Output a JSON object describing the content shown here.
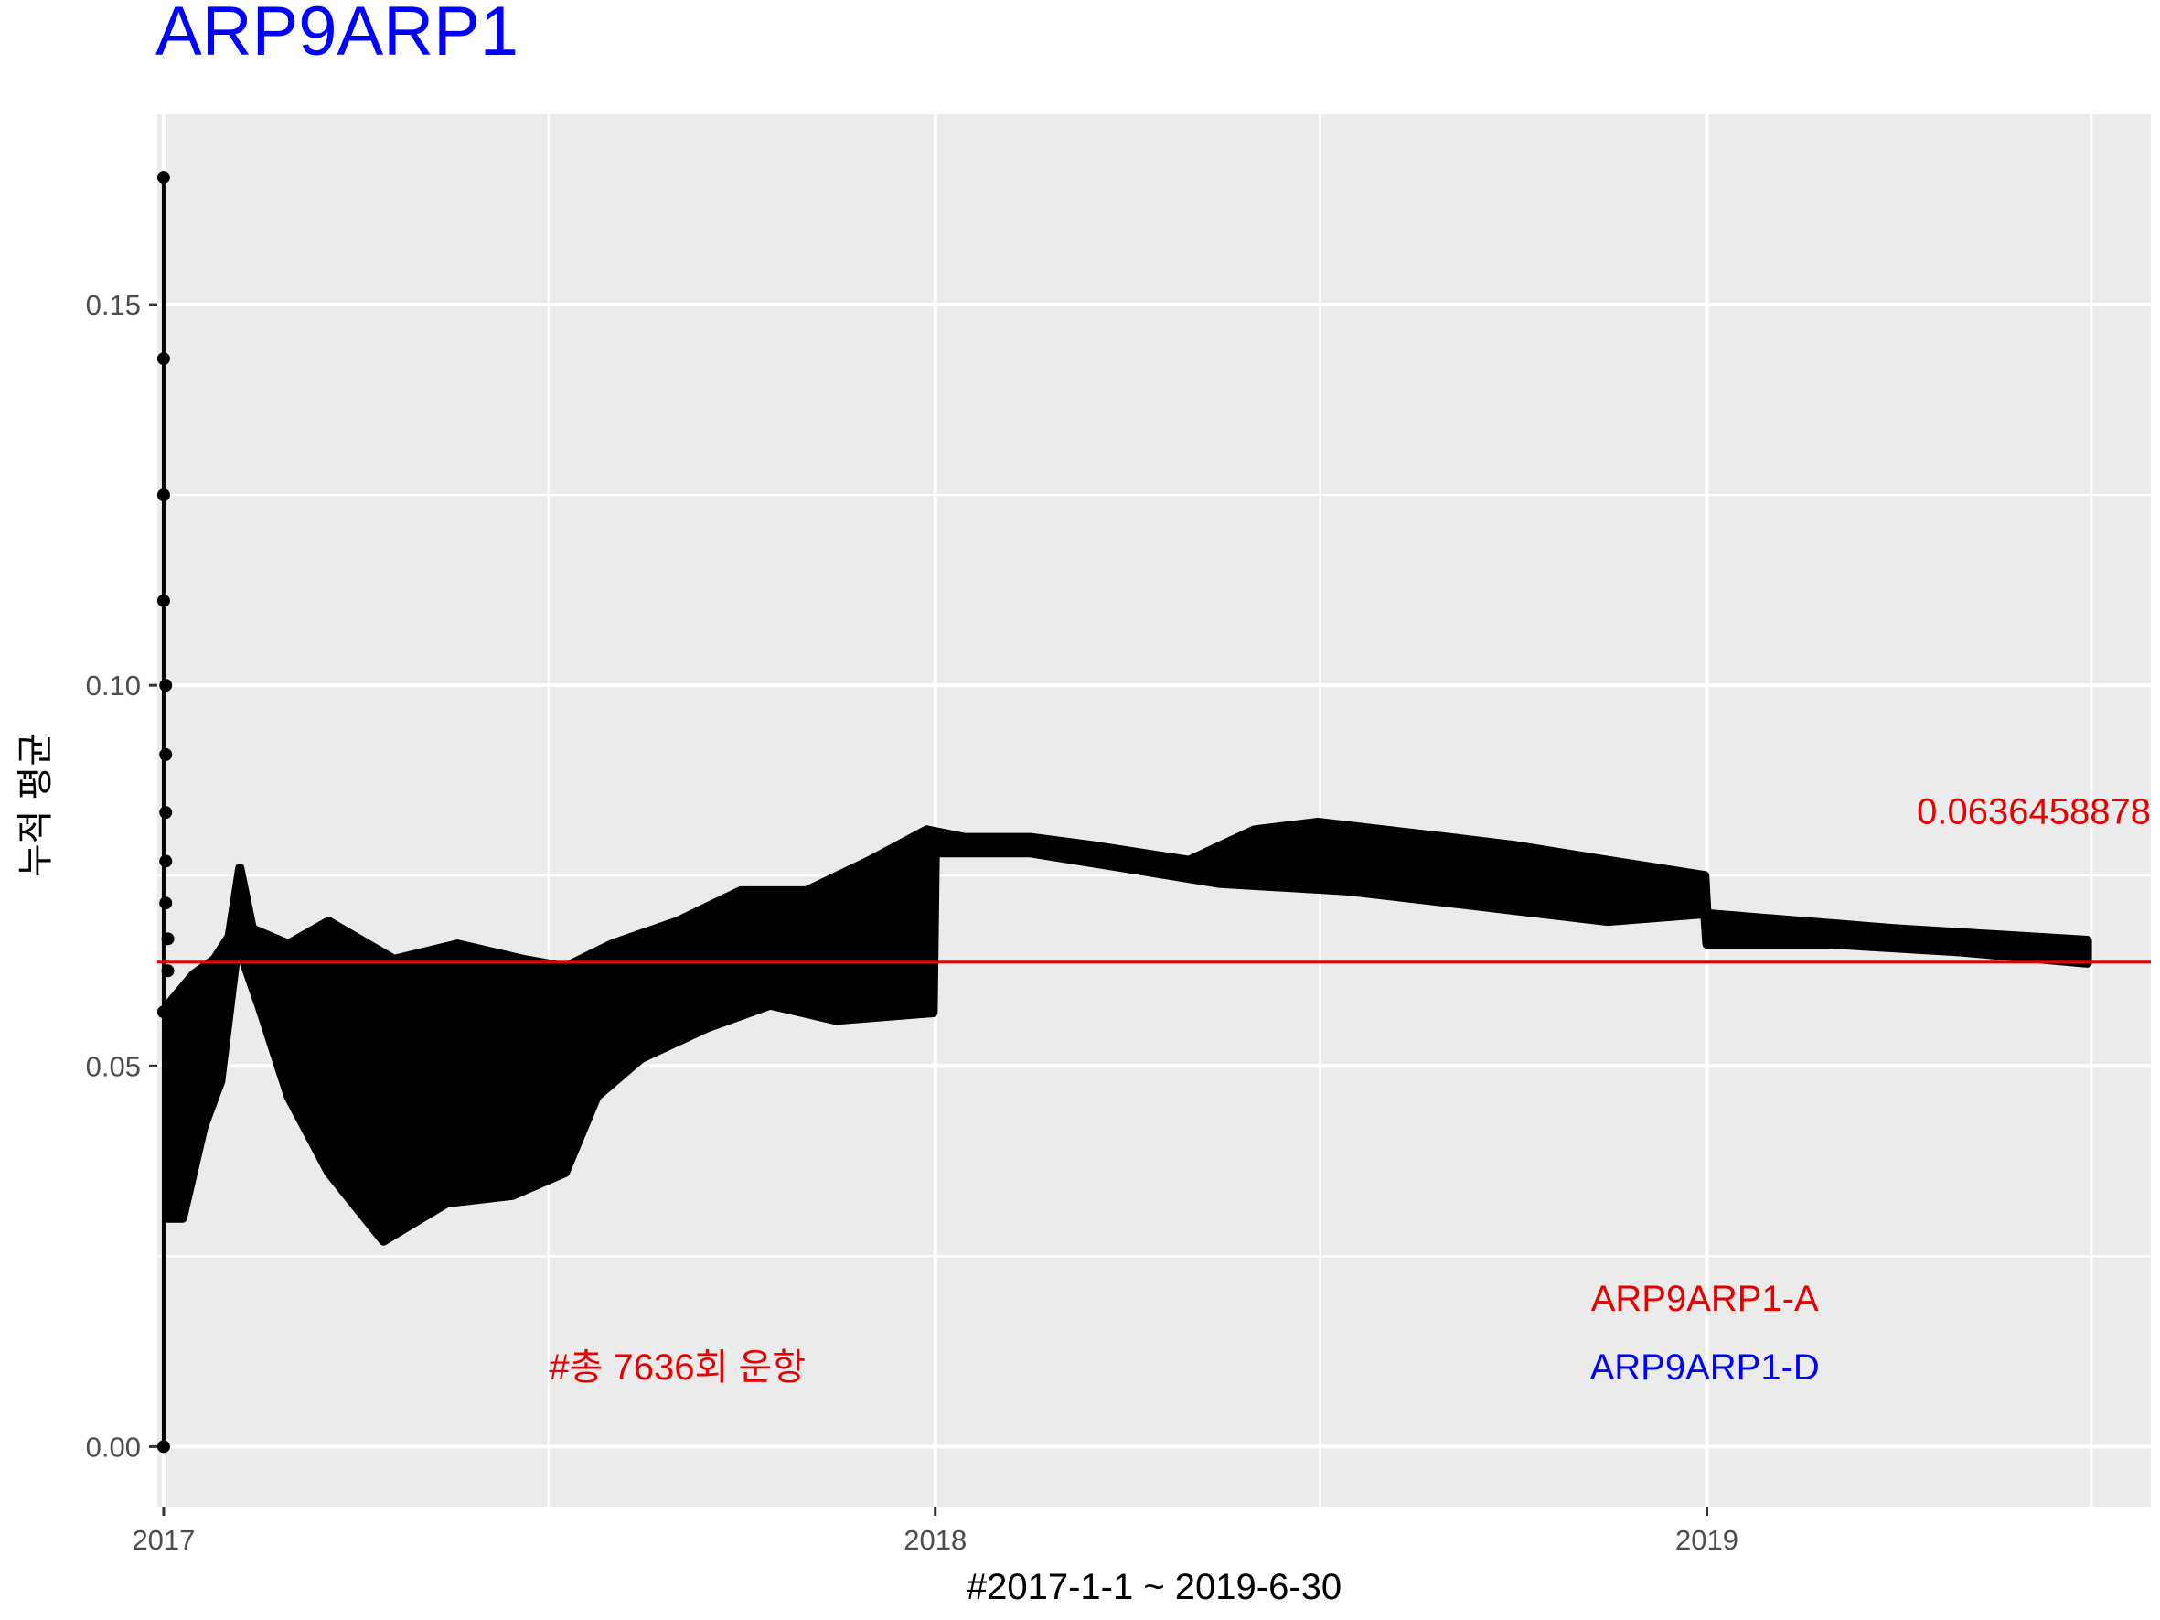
{
  "chart_data": {
    "type": "line",
    "title": "ARP9ARP1",
    "xlabel": "#2017-1-1 ~ 2019-6-30",
    "ylabel": "누적 평균",
    "x_range": [
      "2016-12-29",
      "2019-07-30"
    ],
    "ylim": [
      -0.008,
      0.175
    ],
    "x_ticks": [
      {
        "label": "2017",
        "date": "2017-01-01"
      },
      {
        "label": "2018",
        "date": "2018-01-01"
      },
      {
        "label": "2019",
        "date": "2019-01-01"
      }
    ],
    "x_minor_ticks": [
      "2017-07-02",
      "2018-07-02",
      "2019-07-02"
    ],
    "y_ticks": [
      {
        "label": "0.00",
        "value": 0.0
      },
      {
        "label": "0.05",
        "value": 0.05
      },
      {
        "label": "0.10",
        "value": 0.1
      },
      {
        "label": "0.15",
        "value": 0.15
      }
    ],
    "y_minor_ticks": [
      0.025,
      0.075,
      0.125
    ],
    "grid": true,
    "series": [
      {
        "name": "ARP9ARP1",
        "color": "#000000",
        "early_points": [
          {
            "x": "2017-01-01",
            "y": 0.1667
          },
          {
            "x": "2017-01-01",
            "y": 0.1429
          },
          {
            "x": "2017-01-01",
            "y": 0.125
          },
          {
            "x": "2017-01-01",
            "y": 0.1111
          },
          {
            "x": "2017-01-02",
            "y": 0.1
          },
          {
            "x": "2017-01-02",
            "y": 0.0909
          },
          {
            "x": "2017-01-02",
            "y": 0.0833
          },
          {
            "x": "2017-01-02",
            "y": 0.0769
          },
          {
            "x": "2017-01-02",
            "y": 0.0714
          },
          {
            "x": "2017-01-03",
            "y": 0.0667
          },
          {
            "x": "2017-01-03",
            "y": 0.0625
          },
          {
            "x": "2017-01-01",
            "y": 0.0571
          },
          {
            "x": "2017-01-01",
            "y": 0.0
          }
        ],
        "upper_envelope": [
          {
            "x": "2017-01-03",
            "y": 0.058
          },
          {
            "x": "2017-01-15",
            "y": 0.062
          },
          {
            "x": "2017-01-25",
            "y": 0.064
          },
          {
            "x": "2017-02-01",
            "y": 0.067
          },
          {
            "x": "2017-02-06",
            "y": 0.076
          },
          {
            "x": "2017-02-12",
            "y": 0.068
          },
          {
            "x": "2017-03-01",
            "y": 0.066
          },
          {
            "x": "2017-03-20",
            "y": 0.069
          },
          {
            "x": "2017-04-20",
            "y": 0.064
          },
          {
            "x": "2017-05-20",
            "y": 0.066
          },
          {
            "x": "2017-06-20",
            "y": 0.064
          },
          {
            "x": "2017-07-10",
            "y": 0.063
          },
          {
            "x": "2017-08-01",
            "y": 0.066
          },
          {
            "x": "2017-09-01",
            "y": 0.069
          },
          {
            "x": "2017-10-01",
            "y": 0.073
          },
          {
            "x": "2017-11-01",
            "y": 0.073
          },
          {
            "x": "2017-12-01",
            "y": 0.077
          },
          {
            "x": "2017-12-28",
            "y": 0.081
          },
          {
            "x": "2018-01-15",
            "y": 0.08
          },
          {
            "x": "2018-02-15",
            "y": 0.08
          },
          {
            "x": "2018-03-15",
            "y": 0.079
          },
          {
            "x": "2018-05-01",
            "y": 0.077
          },
          {
            "x": "2018-06-01",
            "y": 0.081
          },
          {
            "x": "2018-07-01",
            "y": 0.082
          },
          {
            "x": "2018-08-01",
            "y": 0.081
          },
          {
            "x": "2018-09-01",
            "y": 0.08
          },
          {
            "x": "2018-10-01",
            "y": 0.079
          },
          {
            "x": "2018-11-15",
            "y": 0.077
          },
          {
            "x": "2018-12-31",
            "y": 0.075
          },
          {
            "x": "2019-01-01",
            "y": 0.07
          },
          {
            "x": "2019-02-15",
            "y": 0.069
          },
          {
            "x": "2019-04-01",
            "y": 0.068
          },
          {
            "x": "2019-06-30",
            "y": 0.0665
          }
        ],
        "lower_envelope": [
          {
            "x": "2017-01-03",
            "y": 0.03
          },
          {
            "x": "2017-01-10",
            "y": 0.03
          },
          {
            "x": "2017-01-20",
            "y": 0.042
          },
          {
            "x": "2017-01-28",
            "y": 0.048
          },
          {
            "x": "2017-02-05",
            "y": 0.066
          },
          {
            "x": "2017-02-15",
            "y": 0.058
          },
          {
            "x": "2017-03-01",
            "y": 0.046
          },
          {
            "x": "2017-03-20",
            "y": 0.036
          },
          {
            "x": "2017-04-15",
            "y": 0.027
          },
          {
            "x": "2017-05-15",
            "y": 0.032
          },
          {
            "x": "2017-06-15",
            "y": 0.033
          },
          {
            "x": "2017-07-10",
            "y": 0.036
          },
          {
            "x": "2017-07-25",
            "y": 0.046
          },
          {
            "x": "2017-08-15",
            "y": 0.051
          },
          {
            "x": "2017-09-15",
            "y": 0.055
          },
          {
            "x": "2017-10-15",
            "y": 0.058
          },
          {
            "x": "2017-11-15",
            "y": 0.056
          },
          {
            "x": "2017-12-31",
            "y": 0.057
          },
          {
            "x": "2018-01-01",
            "y": 0.078
          },
          {
            "x": "2018-02-15",
            "y": 0.078
          },
          {
            "x": "2018-04-01",
            "y": 0.076
          },
          {
            "x": "2018-05-15",
            "y": 0.074
          },
          {
            "x": "2018-07-15",
            "y": 0.073
          },
          {
            "x": "2018-09-15",
            "y": 0.071
          },
          {
            "x": "2018-11-15",
            "y": 0.069
          },
          {
            "x": "2018-12-31",
            "y": 0.07
          },
          {
            "x": "2019-01-01",
            "y": 0.066
          },
          {
            "x": "2019-03-01",
            "y": 0.066
          },
          {
            "x": "2019-05-01",
            "y": 0.065
          },
          {
            "x": "2019-06-30",
            "y": 0.0635
          }
        ]
      }
    ],
    "reference_line": {
      "y": 0.0636458878,
      "color": "#e60000",
      "label": "0.0636458878"
    },
    "annotations": [
      {
        "text": "#총 7636회 운항",
        "x": "2017-09-01",
        "y": 0.0105,
        "color": "#e60000"
      },
      {
        "text": "0.0636458878",
        "x": "2019-07-30",
        "y": 0.0835,
        "color": "#e60000"
      },
      {
        "text": "ARP9ARP1-A",
        "x": "2018-12-31",
        "y": 0.0195,
        "color": "#e60000"
      },
      {
        "text": "ARP9ARP1-D",
        "x": "2018-12-31",
        "y": 0.0105,
        "color": "#0000ff"
      }
    ],
    "colors": {
      "title": "#0000ff",
      "panel": "#ebebeb",
      "grid": "#ffffff",
      "data": "#000000",
      "reference": "#e60000"
    }
  }
}
